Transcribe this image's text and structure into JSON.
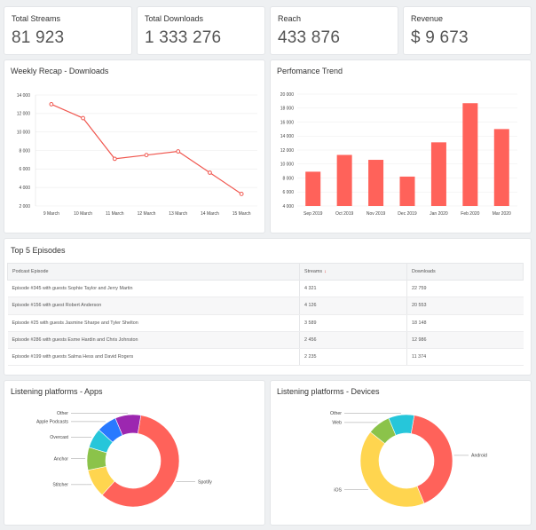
{
  "kpis": [
    {
      "label": "Total Streams",
      "value": "81 923"
    },
    {
      "label": "Total Downloads",
      "value": "1 333 276"
    },
    {
      "label": "Reach",
      "value": "433 876"
    },
    {
      "label": "Revenue",
      "value": "$ 9 673"
    }
  ],
  "colors": {
    "accent": "#f0574f",
    "bar": "#ff625a"
  },
  "weekly": {
    "title": "Weekly Recap - Downloads"
  },
  "trend": {
    "title": "Perfomance Trend"
  },
  "episodes": {
    "title": "Top 5 Episodes",
    "headers": {
      "episode": "Podcast Episode",
      "streams": "Streams",
      "downloads": "Downloads",
      "sort_icon": "arrow-down-icon"
    },
    "rows": [
      {
        "episode": "Episode #345 with guests Sophie Taylor and Jerry Martin",
        "streams": "4 321",
        "downloads": "22 759"
      },
      {
        "episode": "Episode #156 with guest Robert Anderson",
        "streams": "4 126",
        "downloads": "20 553"
      },
      {
        "episode": "Episode #25 with guests Jasmine Sharpe and Tyler Shelton",
        "streams": "3 589",
        "downloads": "18 148"
      },
      {
        "episode": "Episode #286 with guests Esme Hardin and Chris Johnston",
        "streams": "2 456",
        "downloads": "12 986"
      },
      {
        "episode": "Episode #199 with guests Salma Hess and David Rogers",
        "streams": "2 235",
        "downloads": "11 374"
      }
    ]
  },
  "apps": {
    "title": "Listening platforms - Apps"
  },
  "devices": {
    "title": "Listening platforms - Devices"
  },
  "chart_data": [
    {
      "type": "line",
      "title": "Weekly Recap - Downloads",
      "categories": [
        "9 March",
        "10 March",
        "11 March",
        "12 March",
        "13 March",
        "14 March",
        "15 March"
      ],
      "values": [
        13000,
        11500,
        7100,
        7500,
        7900,
        5600,
        3300
      ],
      "ylim": [
        2000,
        14000
      ],
      "yticks": [
        "2 000",
        "4 000",
        "6 000",
        "8 000",
        "10 000",
        "12 000",
        "14 000"
      ],
      "grid": true
    },
    {
      "type": "bar",
      "title": "Perfomance Trend",
      "categories": [
        "Sep 2019",
        "Oct 2019",
        "Nov 2019",
        "Dec 2019",
        "Jan 2020",
        "Feb 2020",
        "Mar 2020"
      ],
      "values": [
        8900,
        11300,
        10600,
        8200,
        13100,
        18700,
        15000
      ],
      "ylim": [
        4000,
        20000
      ],
      "yticks": [
        "4 000",
        "6 000",
        "8 000",
        "10 000",
        "12 000",
        "14 000",
        "16 000",
        "18 000",
        "20 000"
      ],
      "grid": true
    },
    {
      "type": "pie",
      "title": "Listening platforms - Apps",
      "labels": [
        "Spotify",
        "Stitcher",
        "Anchor",
        "Overcast",
        "Apple Podcasts",
        "Other"
      ],
      "values": [
        59,
        10,
        8,
        7,
        7,
        9
      ],
      "colors": [
        "#ff625a",
        "#ffd54f",
        "#8bc34a",
        "#26c6da",
        "#2979ff",
        "#9c27b0"
      ]
    },
    {
      "type": "pie",
      "title": "Listening platforms - Devices",
      "labels": [
        "Android",
        "iOS",
        "Web",
        "Other"
      ],
      "values": [
        41,
        42,
        8,
        9
      ],
      "colors": [
        "#ff625a",
        "#ffd54f",
        "#8bc34a",
        "#26c6da"
      ]
    }
  ]
}
